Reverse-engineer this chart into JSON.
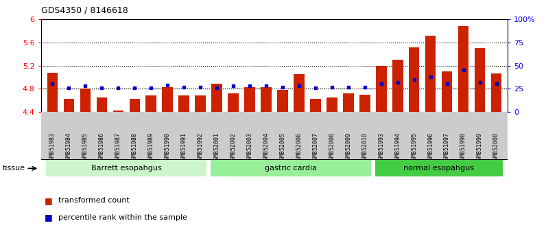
{
  "title": "GDS4350 / 8146618",
  "samples": [
    "GSM851983",
    "GSM851984",
    "GSM851985",
    "GSM851986",
    "GSM851987",
    "GSM851988",
    "GSM851989",
    "GSM851990",
    "GSM851991",
    "GSM851992",
    "GSM852001",
    "GSM852002",
    "GSM852003",
    "GSM852004",
    "GSM852005",
    "GSM852006",
    "GSM852007",
    "GSM852008",
    "GSM852009",
    "GSM852010",
    "GSM851993",
    "GSM851994",
    "GSM851995",
    "GSM851996",
    "GSM851997",
    "GSM851998",
    "GSM851999",
    "GSM852000"
  ],
  "red_values": [
    5.08,
    4.63,
    4.8,
    4.65,
    4.42,
    4.63,
    4.68,
    4.83,
    4.68,
    4.68,
    4.88,
    4.72,
    4.83,
    4.83,
    4.78,
    5.05,
    4.63,
    4.65,
    4.72,
    4.7,
    5.2,
    5.3,
    5.52,
    5.72,
    5.1,
    5.88,
    5.5,
    5.07
  ],
  "blue_values": [
    30,
    26,
    28,
    26,
    26,
    26,
    26,
    29,
    27,
    27,
    26,
    28,
    28,
    28,
    27,
    28,
    26,
    27,
    27,
    27,
    30,
    32,
    35,
    38,
    30,
    45,
    32,
    30
  ],
  "groups": [
    {
      "label": "Barrett esopahgus",
      "start": 0,
      "end": 10,
      "color": "#ccf5cc"
    },
    {
      "label": "gastric cardia",
      "start": 10,
      "end": 20,
      "color": "#99ee99"
    },
    {
      "label": "normal esopahgus",
      "start": 20,
      "end": 28,
      "color": "#44cc44"
    }
  ],
  "ylim_left": [
    4.4,
    6.0
  ],
  "ylim_right": [
    0,
    100
  ],
  "yticks_left": [
    4.4,
    4.8,
    5.2,
    5.6,
    6.0
  ],
  "yticks_right": [
    0,
    25,
    50,
    75,
    100
  ],
  "ytick_labels_right": [
    "0",
    "25",
    "50",
    "75",
    "100%"
  ],
  "grid_values": [
    4.8,
    5.2,
    5.6
  ],
  "bar_color": "#cc2200",
  "dot_color": "#0000cc",
  "xtick_bg": "#cccccc",
  "legend_red": "transformed count",
  "legend_blue": "percentile rank within the sample",
  "tissue_label": "tissue"
}
